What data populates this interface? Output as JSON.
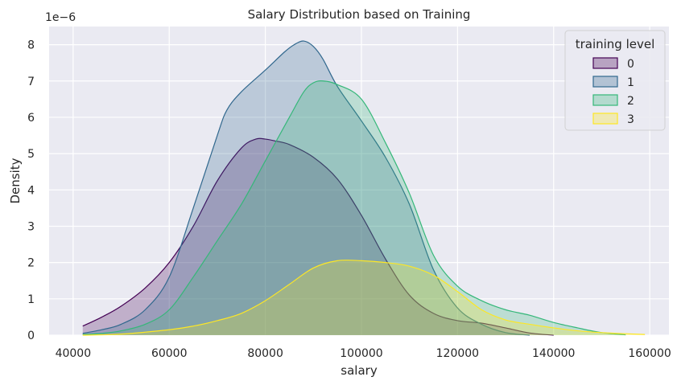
{
  "chart_data": {
    "type": "area",
    "title": "Salary Distribution based on Training",
    "xlabel": "salary",
    "ylabel": "Density",
    "y_scale_label": "1e−6",
    "xlim": [
      35000,
      164000
    ],
    "ylim": [
      0,
      8.5
    ],
    "x_ticks": [
      40000,
      60000,
      80000,
      100000,
      120000,
      140000,
      160000
    ],
    "x_tick_labels": [
      "40000",
      "60000",
      "80000",
      "100000",
      "120000",
      "140000",
      "160000"
    ],
    "y_ticks": [
      0,
      1,
      2,
      3,
      4,
      5,
      6,
      7,
      8
    ],
    "y_tick_labels": [
      "0",
      "1",
      "2",
      "3",
      "4",
      "5",
      "6",
      "7",
      "8"
    ],
    "grid": true,
    "legend": {
      "title": "training level",
      "placement": "top-right"
    },
    "series": [
      {
        "name": "0",
        "color": "#440154",
        "x": [
          42000,
          46000,
          50000,
          55000,
          60000,
          65000,
          70000,
          75000,
          78000,
          80000,
          82000,
          85000,
          90000,
          95000,
          100000,
          105000,
          110000,
          115000,
          120000,
          125000,
          130000,
          135000,
          140000
        ],
        "y": [
          0.25,
          0.5,
          0.8,
          1.3,
          2.0,
          3.0,
          4.25,
          5.15,
          5.4,
          5.4,
          5.35,
          5.25,
          4.9,
          4.3,
          3.3,
          2.1,
          1.1,
          0.6,
          0.4,
          0.33,
          0.2,
          0.06,
          0.0
        ]
      },
      {
        "name": "1",
        "color": "#31688e",
        "x": [
          42000,
          46000,
          50000,
          55000,
          60000,
          65000,
          70000,
          72000,
          75000,
          80000,
          84000,
          86000,
          88000,
          90000,
          92000,
          95000,
          100000,
          105000,
          110000,
          115000,
          120000,
          125000,
          130000,
          135000
        ],
        "y": [
          0.05,
          0.15,
          0.3,
          0.7,
          1.6,
          3.5,
          5.5,
          6.2,
          6.7,
          7.3,
          7.8,
          8.0,
          8.1,
          7.95,
          7.6,
          6.85,
          5.9,
          4.9,
          3.6,
          1.8,
          0.75,
          0.3,
          0.07,
          0.0
        ]
      },
      {
        "name": "2",
        "color": "#35b779",
        "x": [
          42000,
          46000,
          50000,
          55000,
          60000,
          65000,
          70000,
          75000,
          80000,
          85000,
          88000,
          90000,
          92000,
          95000,
          100000,
          105000,
          110000,
          115000,
          120000,
          125000,
          130000,
          135000,
          140000,
          145000,
          150000,
          155000
        ],
        "y": [
          0.02,
          0.05,
          0.12,
          0.3,
          0.7,
          1.6,
          2.6,
          3.6,
          4.8,
          6.0,
          6.7,
          6.95,
          7.0,
          6.9,
          6.5,
          5.3,
          3.9,
          2.2,
          1.35,
          0.95,
          0.7,
          0.55,
          0.35,
          0.2,
          0.07,
          0.01
        ]
      },
      {
        "name": "3",
        "color": "#fde725",
        "x": [
          42000,
          50000,
          60000,
          65000,
          70000,
          75000,
          80000,
          85000,
          90000,
          95000,
          100000,
          105000,
          110000,
          115000,
          120000,
          125000,
          130000,
          135000,
          140000,
          145000,
          150000,
          155000,
          159000
        ],
        "y": [
          0.0,
          0.03,
          0.15,
          0.25,
          0.4,
          0.6,
          0.95,
          1.4,
          1.85,
          2.05,
          2.05,
          2.0,
          1.9,
          1.65,
          1.2,
          0.7,
          0.42,
          0.3,
          0.2,
          0.12,
          0.07,
          0.04,
          0.02
        ]
      }
    ]
  }
}
